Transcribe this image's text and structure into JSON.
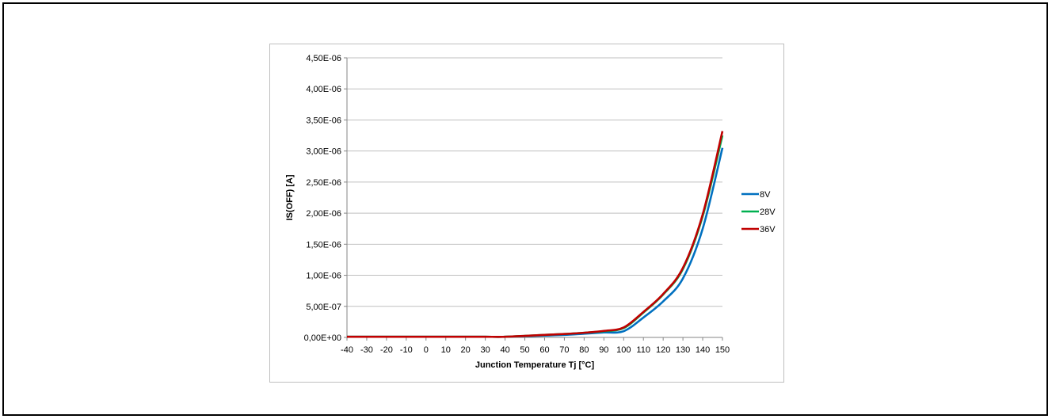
{
  "chart_data": {
    "type": "line",
    "title": "",
    "xlabel": "Junction Temperature Tj [°C]",
    "ylabel": "IS(OFF) [A]",
    "xlim": [
      -40,
      150
    ],
    "ylim": [
      0,
      4.5e-06
    ],
    "x_ticks": [
      "-40",
      "-30",
      "-20",
      "-10",
      "0",
      "10",
      "20",
      "30",
      "40",
      "50",
      "60",
      "70",
      "80",
      "90",
      "100",
      "110",
      "120",
      "130",
      "140",
      "150"
    ],
    "y_ticks": [
      "0,00E+00",
      "5,00E-07",
      "1,00E-06",
      "1,50E-06",
      "2,00E-06",
      "2,50E-06",
      "3,00E-06",
      "3,50E-06",
      "4,00E-06",
      "4,50E-06"
    ],
    "grid": true,
    "legend_position": "right",
    "x": [
      -40,
      -30,
      -20,
      -10,
      0,
      10,
      20,
      30,
      40,
      50,
      60,
      70,
      80,
      90,
      100,
      110,
      120,
      130,
      140,
      150
    ],
    "series": [
      {
        "name": "8V",
        "color": "#0070C0",
        "values": [
          1e-08,
          1e-08,
          1e-08,
          1e-08,
          1e-08,
          1e-08,
          1e-08,
          1e-08,
          1e-08,
          2e-08,
          3e-08,
          4e-08,
          6e-08,
          8e-08,
          1e-07,
          3.2e-07,
          5.8e-07,
          9.5e-07,
          1.75e-06,
          3.05e-06
        ]
      },
      {
        "name": "28V",
        "color": "#00B050",
        "values": [
          1e-08,
          1e-08,
          1e-08,
          1e-08,
          1e-08,
          1e-08,
          1e-08,
          1e-08,
          1e-08,
          2.5e-08,
          4e-08,
          5.5e-08,
          7.5e-08,
          1e-07,
          1.5e-07,
          4e-07,
          6.9e-07,
          1.1e-06,
          1.95e-06,
          3.25e-06
        ]
      },
      {
        "name": "36V",
        "color": "#C00000",
        "values": [
          1e-08,
          1e-08,
          1e-08,
          1e-08,
          1e-08,
          1e-08,
          1e-08,
          1e-08,
          1e-08,
          2.5e-08,
          4e-08,
          5.5e-08,
          7.5e-08,
          1.05e-07,
          1.6e-07,
          4.1e-07,
          7e-07,
          1.12e-06,
          1.98e-06,
          3.32e-06
        ]
      }
    ]
  }
}
